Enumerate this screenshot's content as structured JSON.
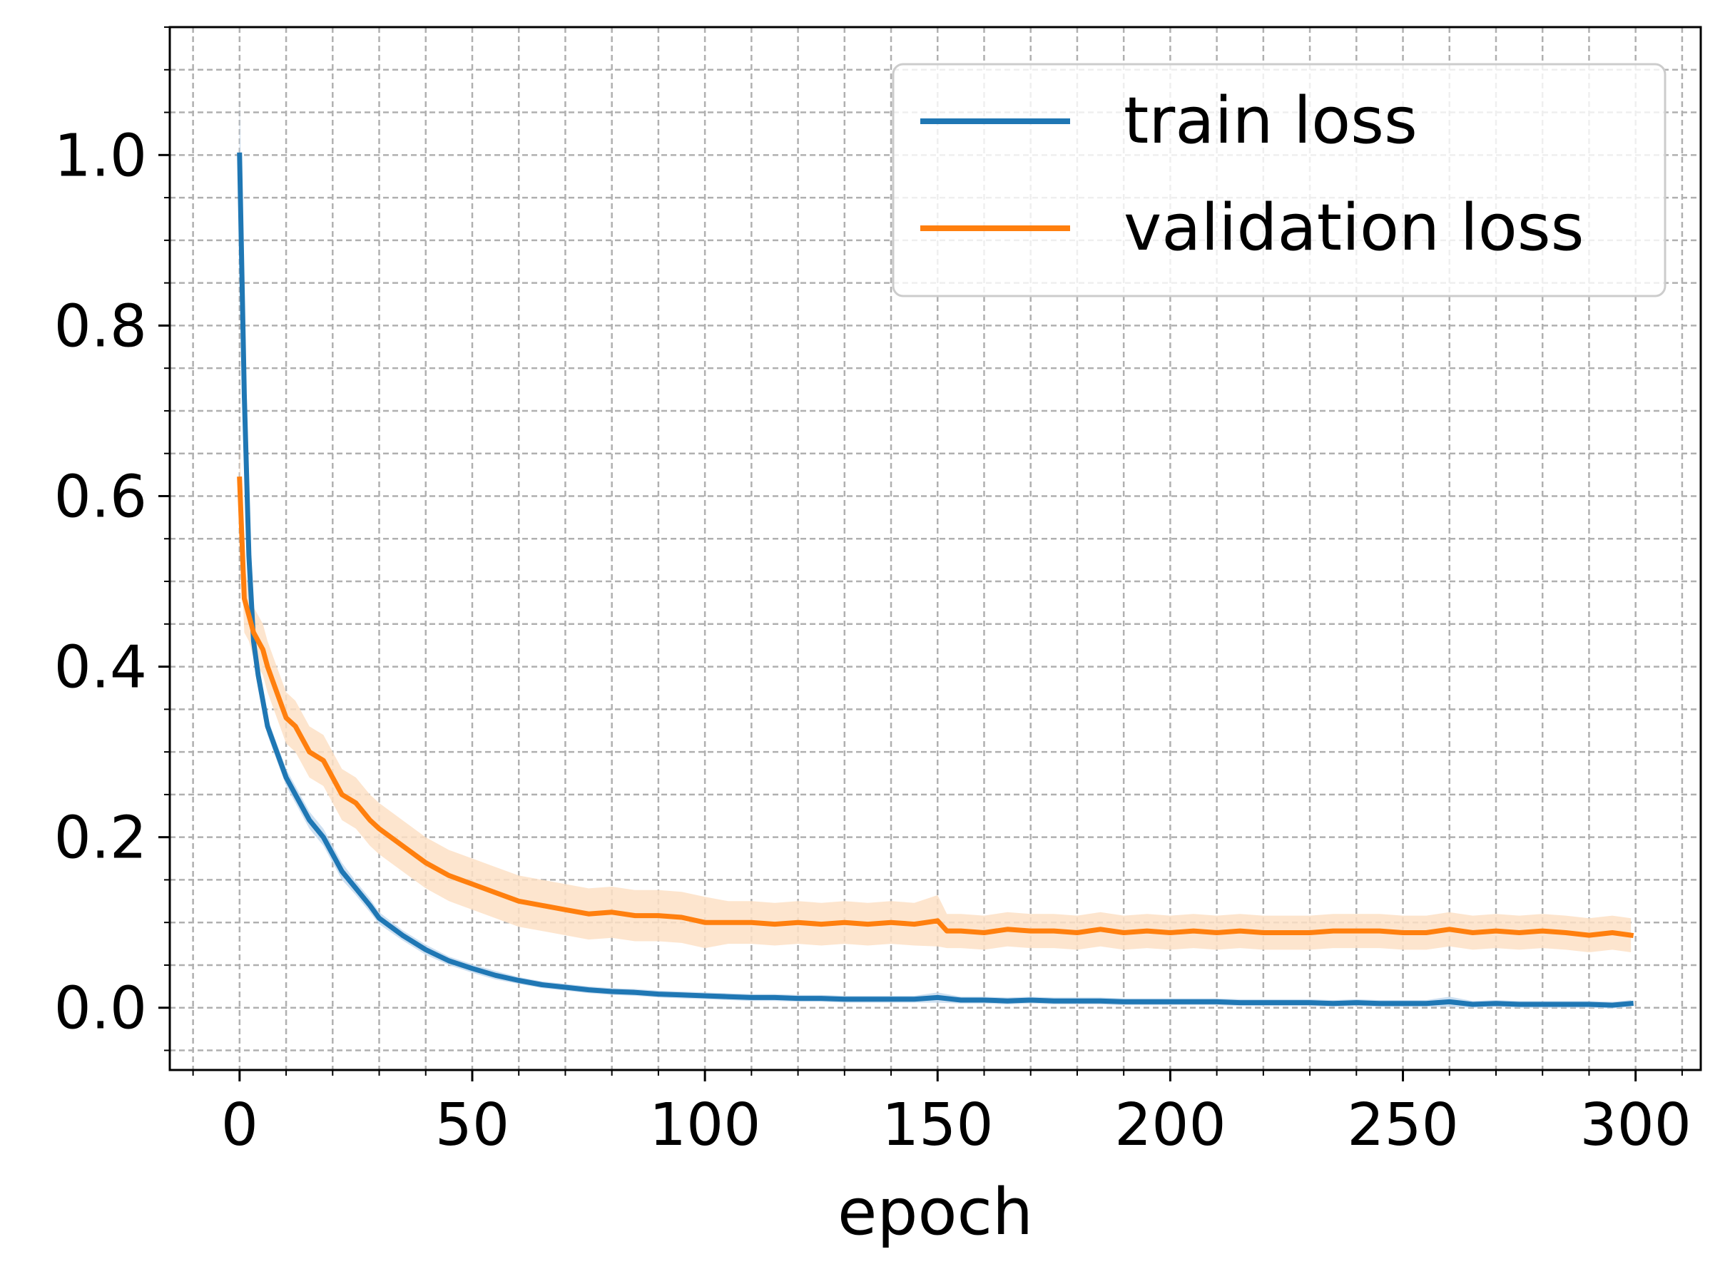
{
  "chart_data": {
    "type": "line",
    "title": "",
    "xlabel": "epoch",
    "ylabel": "",
    "xlim": [
      -15,
      314
    ],
    "ylim": [
      -0.073,
      1.15
    ],
    "x_ticks": [
      0,
      50,
      100,
      150,
      200,
      250,
      300
    ],
    "x_tick_labels": [
      "0",
      "50",
      "100",
      "150",
      "200",
      "250",
      "300"
    ],
    "y_ticks": [
      0.0,
      0.2,
      0.4,
      0.6,
      0.8,
      1.0
    ],
    "y_tick_labels": [
      "0.0",
      "0.2",
      "0.4",
      "0.6",
      "0.8",
      "1.0"
    ],
    "x_minor_step": 10,
    "y_minor_step": 0.05,
    "grid": true,
    "legend_position": "top-right",
    "series": [
      {
        "name": "train loss",
        "color": "#1f77b4",
        "band_color": "#c6dbef",
        "x": [
          0,
          1,
          2,
          3,
          4,
          5,
          6,
          8,
          10,
          12,
          15,
          18,
          20,
          22,
          25,
          28,
          30,
          35,
          40,
          45,
          50,
          55,
          60,
          65,
          70,
          75,
          80,
          85,
          90,
          95,
          100,
          105,
          110,
          115,
          120,
          125,
          130,
          135,
          140,
          145,
          150,
          155,
          160,
          165,
          170,
          175,
          180,
          185,
          190,
          195,
          200,
          205,
          210,
          215,
          220,
          225,
          230,
          235,
          240,
          245,
          250,
          255,
          260,
          265,
          270,
          275,
          280,
          285,
          290,
          295,
          299
        ],
        "values": [
          1.0,
          0.72,
          0.53,
          0.43,
          0.39,
          0.36,
          0.33,
          0.3,
          0.27,
          0.25,
          0.22,
          0.2,
          0.18,
          0.16,
          0.14,
          0.12,
          0.105,
          0.085,
          0.068,
          0.055,
          0.046,
          0.038,
          0.032,
          0.027,
          0.024,
          0.021,
          0.019,
          0.018,
          0.016,
          0.015,
          0.014,
          0.013,
          0.012,
          0.012,
          0.011,
          0.011,
          0.01,
          0.01,
          0.01,
          0.01,
          0.012,
          0.009,
          0.009,
          0.008,
          0.009,
          0.008,
          0.008,
          0.008,
          0.007,
          0.007,
          0.007,
          0.007,
          0.007,
          0.006,
          0.006,
          0.006,
          0.006,
          0.005,
          0.006,
          0.005,
          0.005,
          0.005,
          0.007,
          0.004,
          0.005,
          0.004,
          0.004,
          0.004,
          0.004,
          0.003,
          0.005
        ],
        "band": [
          0.07,
          0.05,
          0.03,
          0.02,
          0.015,
          0.012,
          0.01,
          0.01,
          0.01,
          0.01,
          0.01,
          0.01,
          0.01,
          0.01,
          0.008,
          0.008,
          0.007,
          0.006,
          0.006,
          0.005,
          0.005,
          0.005,
          0.004,
          0.004,
          0.004,
          0.004,
          0.004,
          0.004,
          0.004,
          0.004,
          0.004,
          0.004,
          0.004,
          0.004,
          0.004,
          0.004,
          0.004,
          0.004,
          0.004,
          0.004,
          0.006,
          0.004,
          0.004,
          0.004,
          0.004,
          0.004,
          0.004,
          0.004,
          0.004,
          0.004,
          0.004,
          0.004,
          0.004,
          0.004,
          0.004,
          0.004,
          0.004,
          0.004,
          0.004,
          0.004,
          0.004,
          0.004,
          0.006,
          0.004,
          0.004,
          0.004,
          0.004,
          0.004,
          0.004,
          0.004,
          0.004
        ]
      },
      {
        "name": "validation loss",
        "color": "#ff7f0e",
        "band_color": "#fde0c5",
        "x": [
          0,
          1,
          2,
          3,
          4,
          5,
          6,
          8,
          10,
          12,
          15,
          18,
          20,
          22,
          25,
          28,
          30,
          35,
          40,
          45,
          50,
          55,
          60,
          65,
          70,
          75,
          80,
          85,
          90,
          95,
          100,
          105,
          110,
          115,
          120,
          125,
          130,
          135,
          140,
          145,
          150,
          152,
          155,
          160,
          165,
          170,
          175,
          180,
          185,
          190,
          195,
          200,
          205,
          210,
          215,
          220,
          225,
          230,
          235,
          240,
          245,
          250,
          255,
          260,
          265,
          270,
          275,
          280,
          285,
          290,
          295,
          299
        ],
        "values": [
          0.62,
          0.48,
          0.46,
          0.44,
          0.43,
          0.42,
          0.4,
          0.37,
          0.34,
          0.33,
          0.3,
          0.29,
          0.27,
          0.25,
          0.24,
          0.22,
          0.21,
          0.19,
          0.17,
          0.155,
          0.145,
          0.135,
          0.125,
          0.12,
          0.115,
          0.11,
          0.112,
          0.108,
          0.108,
          0.106,
          0.1,
          0.1,
          0.1,
          0.098,
          0.1,
          0.098,
          0.1,
          0.098,
          0.1,
          0.098,
          0.102,
          0.09,
          0.09,
          0.088,
          0.092,
          0.09,
          0.09,
          0.088,
          0.092,
          0.088,
          0.09,
          0.088,
          0.09,
          0.088,
          0.09,
          0.088,
          0.088,
          0.088,
          0.09,
          0.09,
          0.09,
          0.088,
          0.088,
          0.092,
          0.088,
          0.09,
          0.088,
          0.09,
          0.088,
          0.085,
          0.088,
          0.085
        ],
        "band": [
          0.04,
          0.04,
          0.03,
          0.03,
          0.03,
          0.03,
          0.03,
          0.03,
          0.03,
          0.03,
          0.03,
          0.03,
          0.03,
          0.03,
          0.03,
          0.03,
          0.03,
          0.03,
          0.03,
          0.03,
          0.03,
          0.03,
          0.03,
          0.03,
          0.03,
          0.03,
          0.03,
          0.03,
          0.03,
          0.03,
          0.03,
          0.025,
          0.025,
          0.025,
          0.025,
          0.025,
          0.025,
          0.025,
          0.025,
          0.025,
          0.03,
          0.02,
          0.02,
          0.02,
          0.02,
          0.02,
          0.02,
          0.02,
          0.02,
          0.02,
          0.02,
          0.02,
          0.02,
          0.02,
          0.02,
          0.02,
          0.02,
          0.02,
          0.02,
          0.02,
          0.02,
          0.02,
          0.02,
          0.02,
          0.02,
          0.02,
          0.02,
          0.02,
          0.02,
          0.02,
          0.02,
          0.02
        ]
      }
    ]
  }
}
